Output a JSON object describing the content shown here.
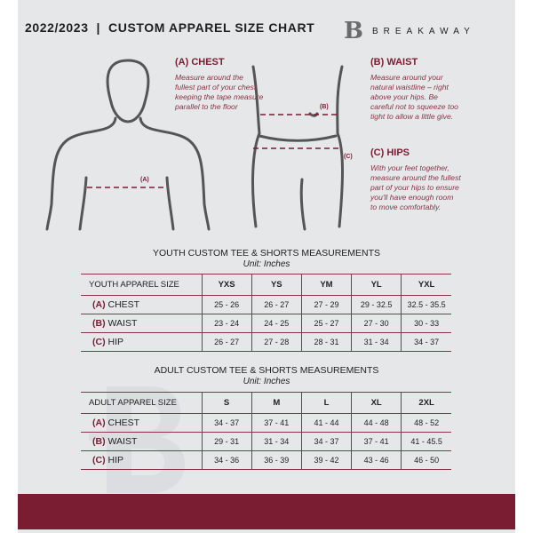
{
  "header": {
    "title": "2022/2023  |  CUSTOM APPAREL SIZE CHART",
    "logo_text": "BREAKAWAY",
    "logo_mark": "B"
  },
  "measures": {
    "chest": {
      "label": "(A) CHEST",
      "marker": "(A)",
      "desc": "Measure around the fullest part of your chest, keeping the tape measure parallel to the floor"
    },
    "waist": {
      "label": "(B) WAIST",
      "marker": "(B)",
      "desc": "Measure around your natural waistline – right above your hips. Be careful not to squeeze too tight to allow a little give."
    },
    "hips": {
      "label": "(C) HIPS",
      "marker": "(C)",
      "desc": "With your feet together, measure around the fullest part of your hips to ensure you'll have enough room to move comfortably."
    }
  },
  "youth": {
    "title": "YOUTH CUSTOM TEE & SHORTS MEASUREMENTS",
    "unit": "Unit: Inches",
    "header": "YOUTH APPAREL SIZE",
    "sizes": [
      "YXS",
      "YS",
      "YM",
      "YL",
      "YXL"
    ],
    "rows": [
      {
        "code": "(A)",
        "name": "CHEST",
        "values": [
          "25 - 26",
          "26 - 27",
          "27 - 29",
          "29 - 32.5",
          "32.5 - 35.5"
        ]
      },
      {
        "code": "(B)",
        "name": "WAIST",
        "values": [
          "23 - 24",
          "24 - 25",
          "25 - 27",
          "27 - 30",
          "30 - 33"
        ]
      },
      {
        "code": "(C)",
        "name": "HIP",
        "values": [
          "26 - 27",
          "27 - 28",
          "28 - 31",
          "31 - 34",
          "34 - 37"
        ]
      }
    ]
  },
  "adult": {
    "title": "ADULT CUSTOM TEE & SHORTS MEASUREMENTS",
    "unit": "Unit: Inches",
    "header": "ADULT APPAREL SIZE",
    "sizes": [
      "S",
      "M",
      "L",
      "XL",
      "2XL"
    ],
    "rows": [
      {
        "code": "(A)",
        "name": "CHEST",
        "values": [
          "34 - 37",
          "37 - 41",
          "41 - 44",
          "44 - 48",
          "48 - 52"
        ]
      },
      {
        "code": "(B)",
        "name": "WAIST",
        "values": [
          "29 - 31",
          "31 - 34",
          "34 - 37",
          "37 - 41",
          "41 - 45.5"
        ]
      },
      {
        "code": "(C)",
        "name": "HIP",
        "values": [
          "34 - 36",
          "36 - 39",
          "39 - 42",
          "43 - 46",
          "46 - 50"
        ]
      }
    ]
  },
  "colors": {
    "accent": "#7a1c32",
    "background": "#e6e7e9"
  }
}
